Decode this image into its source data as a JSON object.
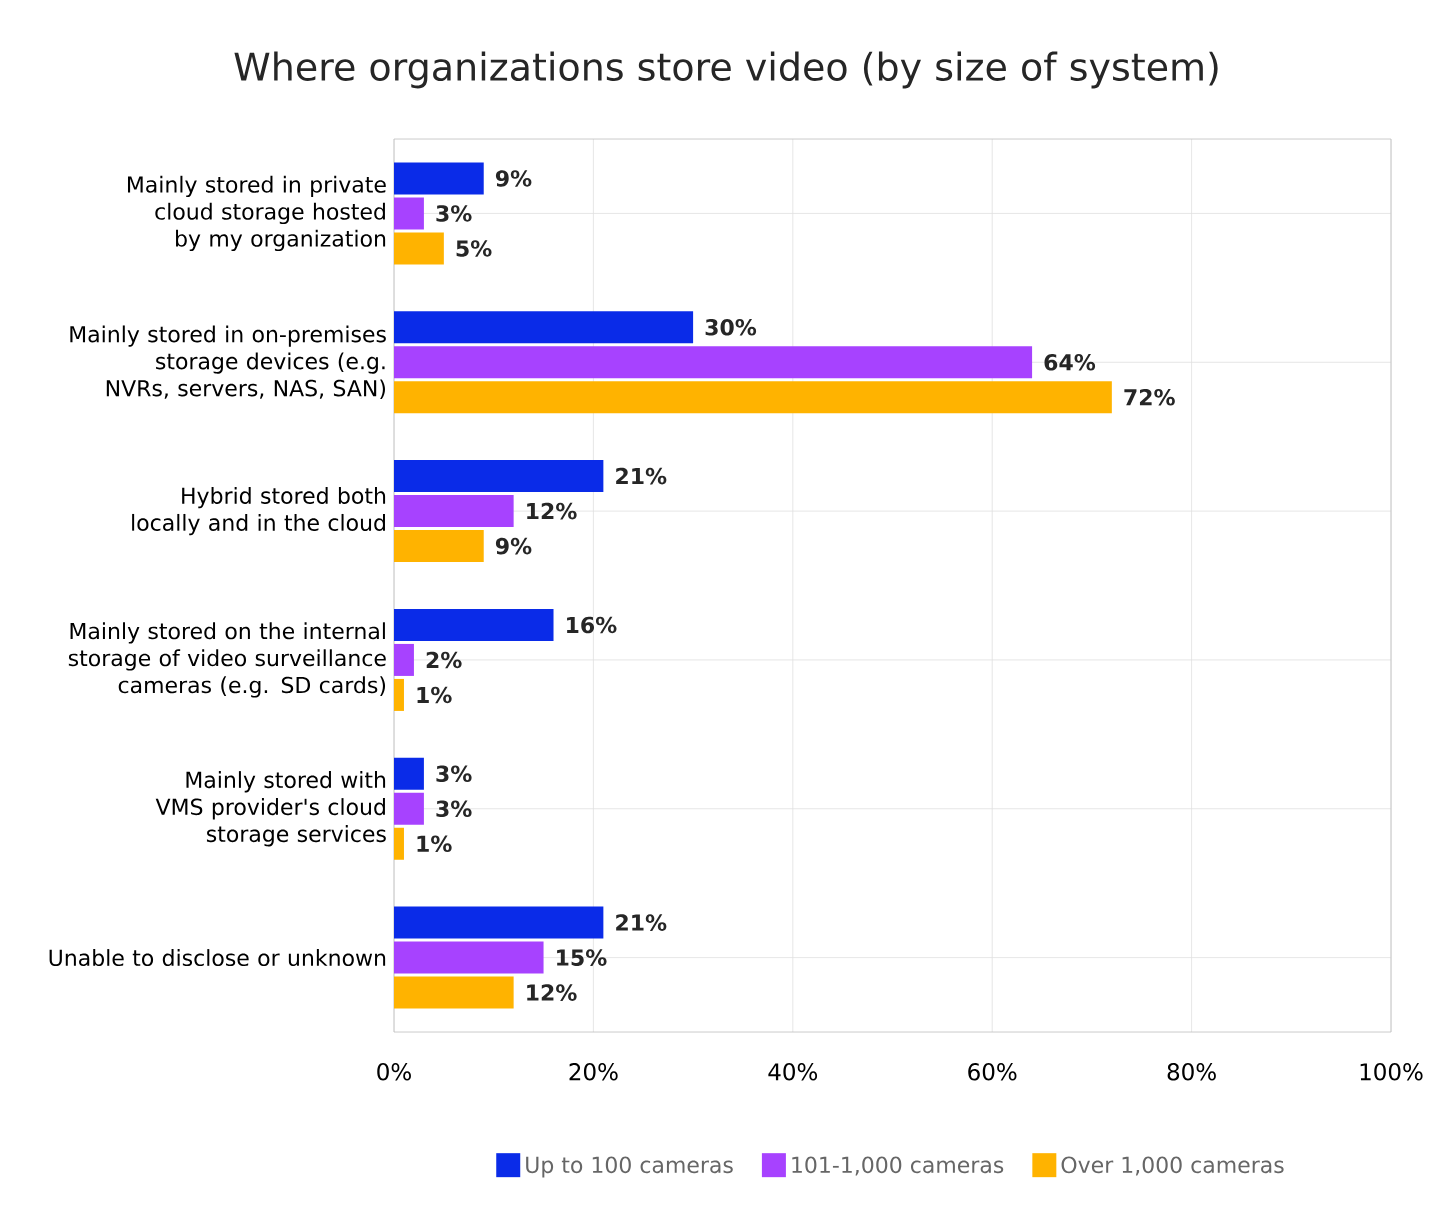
{
  "chart_data": {
    "type": "bar",
    "orientation": "horizontal",
    "title": "Where organizations store video (by size of system)",
    "categories": [
      "Mainly stored in private cloud storage hosted by my organization",
      "Mainly stored in on-premises storage devices (e.g. NVRs, servers, NAS, SAN)",
      "Hybrid stored both locally and in the cloud",
      "Mainly stored on the internal storage of video surveillance cameras (e.g. SD cards)",
      "Mainly stored with VMS provider's cloud storage services",
      "Unable to disclose or unknown"
    ],
    "series": [
      {
        "name": "Up to 100 cameras",
        "color": "#0a2be8",
        "values": [
          9,
          30,
          21,
          16,
          3,
          21
        ],
        "value_labels": [
          "9%",
          "30%",
          "21%",
          "16%",
          "3%",
          "21%"
        ]
      },
      {
        "name": "101-1,000 cameras",
        "color": "#a742ff",
        "values": [
          3,
          64,
          12,
          2,
          3,
          15
        ],
        "value_labels": [
          "3%",
          "64%",
          "12%",
          "2%",
          "3%",
          "15%"
        ]
      },
      {
        "name": "Over 1,000 cameras",
        "color": "#ffb300",
        "values": [
          5,
          72,
          9,
          1,
          1,
          12
        ],
        "value_labels": [
          "5%",
          "72%",
          "9%",
          "1%",
          "1%",
          "12%"
        ]
      }
    ],
    "xlim": [
      0,
      100
    ],
    "xticks": [
      {
        "value": 0,
        "label": "0%"
      },
      {
        "value": 20,
        "label": "20%"
      },
      {
        "value": 40,
        "label": "40%"
      },
      {
        "value": 60,
        "label": "60%"
      },
      {
        "value": 80,
        "label": "80%"
      },
      {
        "value": 100,
        "label": "100%"
      }
    ],
    "grid": true,
    "legend": "bottom"
  }
}
